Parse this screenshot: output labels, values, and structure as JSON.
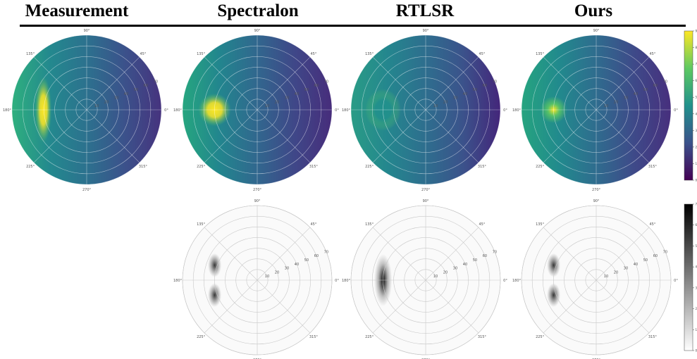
{
  "titles": [
    "Measurement",
    "Spectralon",
    "RTLSR",
    "Ours"
  ],
  "chart_data": [
    {
      "type": "heatmap",
      "panels": [
        "Measurement",
        "Spectralon",
        "RTLSR",
        "Ours"
      ],
      "projection": "polar",
      "angular_ticks": [
        "0°",
        "45°",
        "90°",
        "135°",
        "180°",
        "225°",
        "270°",
        "315°"
      ],
      "radial_ticks": [
        "10",
        "20",
        "30",
        "40",
        "50",
        "60",
        "70"
      ],
      "colormap": "viridis",
      "colorbar_ticks": [
        "0",
        "1",
        "2",
        "3",
        "4",
        "5",
        "6",
        "7",
        "8",
        "9"
      ],
      "peak_azimuth_deg": 180,
      "peak_intensity": {
        "Measurement": 9.0,
        "Spectralon": 8.5,
        "RTLSR": 3.5,
        "Ours": 7.5
      }
    },
    {
      "type": "heatmap",
      "panels": [
        "Spectralon",
        "RTLSR",
        "Ours"
      ],
      "projection": "polar",
      "description": "error maps",
      "angular_ticks": [
        "0°",
        "45°",
        "90°",
        "135°",
        "180°",
        "225°",
        "270°",
        "315°"
      ],
      "radial_ticks": [
        "10",
        "20",
        "30",
        "40",
        "50",
        "60",
        "70"
      ],
      "colormap": "gray_r",
      "colorbar_ticks": [
        "0",
        "1",
        "2",
        "3",
        "4",
        "5",
        "6",
        "7"
      ]
    }
  ]
}
